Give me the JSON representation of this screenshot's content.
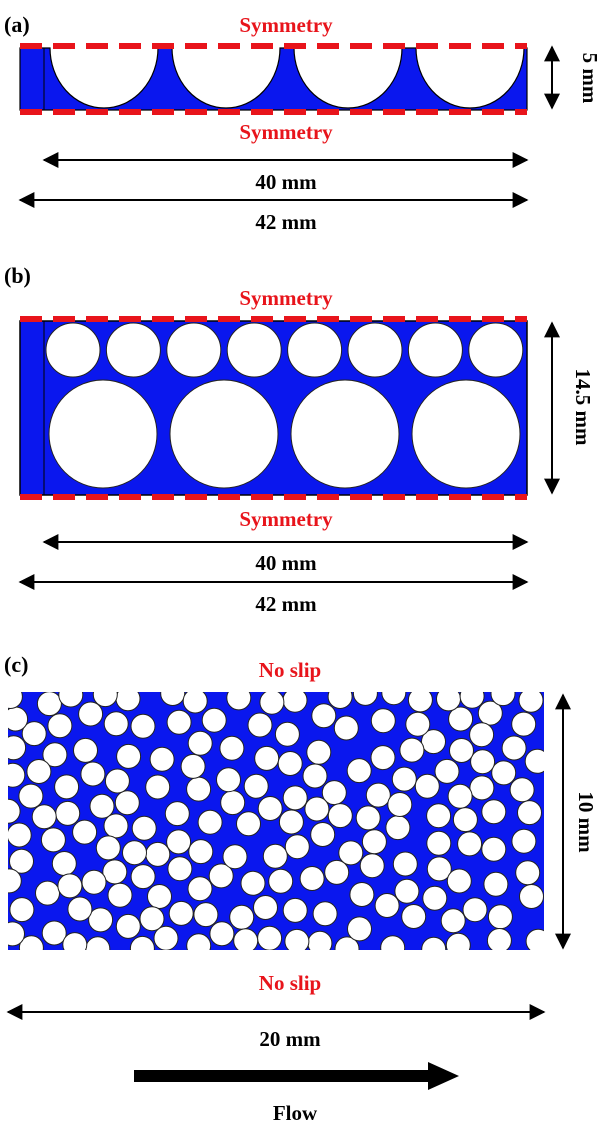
{
  "panels": {
    "a": {
      "label": "(a)",
      "top_boundary": "Symmetry",
      "bottom_boundary": "Symmetry",
      "height_dim": "5 mm",
      "inner_width_dim": "40 mm",
      "outer_width_dim": "42 mm"
    },
    "b": {
      "label": "(b)",
      "top_boundary": "Symmetry",
      "bottom_boundary": "Symmetry",
      "height_dim": "14.5 mm",
      "inner_width_dim": "40 mm",
      "outer_width_dim": "42 mm"
    },
    "c": {
      "label": "(c)",
      "top_boundary": "No slip",
      "bottom_boundary": "No slip",
      "height_dim": "10 mm",
      "width_dim": "20 mm",
      "flow_label": "Flow"
    }
  },
  "colors": {
    "fluid": "#0a17ee",
    "solid": "#ffffff",
    "boundary_text": "#e8141b",
    "dimension": "#000000"
  }
}
